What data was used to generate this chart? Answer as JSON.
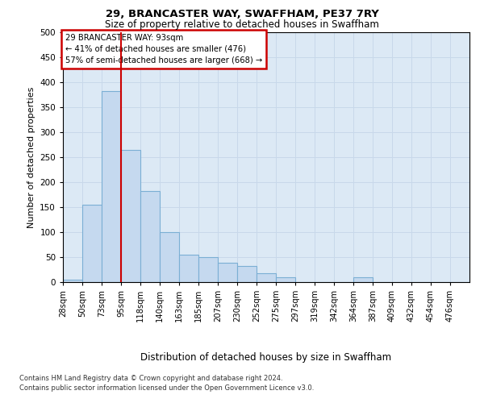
{
  "title": "29, BRANCASTER WAY, SWAFFHAM, PE37 7RY",
  "subtitle": "Size of property relative to detached houses in Swaffham",
  "xlabel": "Distribution of detached houses by size in Swaffham",
  "ylabel": "Number of detached properties",
  "bin_labels": [
    "28sqm",
    "50sqm",
    "73sqm",
    "95sqm",
    "118sqm",
    "140sqm",
    "163sqm",
    "185sqm",
    "207sqm",
    "230sqm",
    "252sqm",
    "275sqm",
    "297sqm",
    "319sqm",
    "342sqm",
    "364sqm",
    "387sqm",
    "409sqm",
    "432sqm",
    "454sqm",
    "476sqm"
  ],
  "bar_values": [
    5,
    155,
    383,
    265,
    183,
    100,
    55,
    50,
    38,
    32,
    18,
    10,
    0,
    0,
    0,
    10,
    0,
    0,
    0,
    0,
    0
  ],
  "bar_color": "#c5d9ef",
  "bar_edge_color": "#7bafd4",
  "vline_at_index": 3,
  "annotation_text": "29 BRANCASTER WAY: 93sqm\n← 41% of detached houses are smaller (476)\n57% of semi-detached houses are larger (668) →",
  "annotation_box_color": "#ffffff",
  "annotation_box_edge": "#cc0000",
  "vline_color": "#cc0000",
  "ylim": [
    0,
    500
  ],
  "yticks": [
    0,
    50,
    100,
    150,
    200,
    250,
    300,
    350,
    400,
    450,
    500
  ],
  "grid_color": "#c8d8ea",
  "bg_color": "#dce9f5",
  "footer_line1": "Contains HM Land Registry data © Crown copyright and database right 2024.",
  "footer_line2": "Contains public sector information licensed under the Open Government Licence v3.0."
}
